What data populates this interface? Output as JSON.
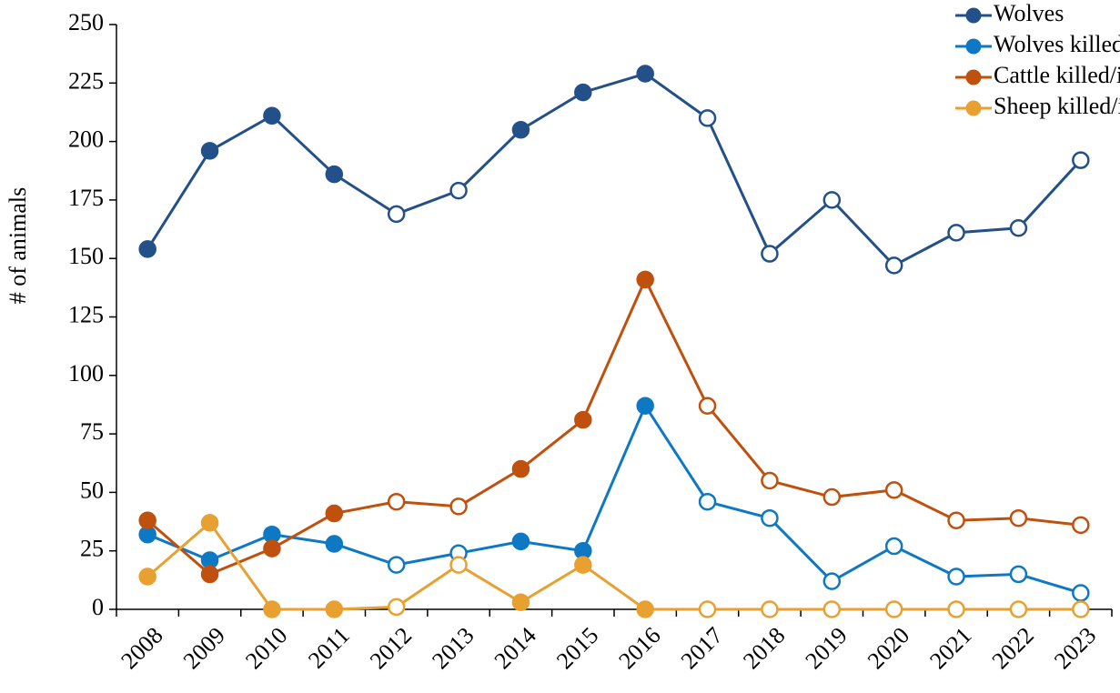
{
  "chart_data": {
    "type": "line",
    "y_label": "# of animals",
    "categories": [
      "2008",
      "2009",
      "2010",
      "2011",
      "2012",
      "2013",
      "2014",
      "2015",
      "2016",
      "2017",
      "2018",
      "2019",
      "2020",
      "2021",
      "2022",
      "2023"
    ],
    "series": [
      {
        "name": "Wolves",
        "color": "#24508a",
        "values": [
          154,
          196,
          211,
          186,
          169,
          179,
          205,
          221,
          229,
          210,
          152,
          175,
          147,
          161,
          163,
          192
        ],
        "marker_filled": [
          true,
          true,
          true,
          true,
          false,
          false,
          true,
          true,
          true,
          false,
          false,
          false,
          false,
          false,
          false,
          false
        ]
      },
      {
        "name": "Wolves killed",
        "color": "#0f78c4",
        "values": [
          32,
          21,
          32,
          28,
          19,
          24,
          29,
          25,
          87,
          46,
          39,
          12,
          27,
          14,
          15,
          7
        ],
        "marker_filled": [
          true,
          true,
          true,
          true,
          false,
          false,
          true,
          true,
          true,
          false,
          false,
          false,
          false,
          false,
          false,
          false
        ]
      },
      {
        "name": "Cattle killed/injured",
        "color": "#c0500e",
        "values": [
          38,
          15,
          26,
          41,
          46,
          44,
          60,
          81,
          141,
          87,
          55,
          48,
          51,
          38,
          39,
          36
        ],
        "marker_filled": [
          true,
          true,
          true,
          true,
          false,
          false,
          true,
          true,
          true,
          false,
          false,
          false,
          false,
          false,
          false,
          false
        ]
      },
      {
        "name": "Sheep killed/injured",
        "color": "#e8a030",
        "values": [
          14,
          37,
          0,
          0,
          1,
          19,
          3,
          19,
          0,
          0,
          0,
          0,
          0,
          0,
          0,
          0
        ],
        "marker_filled": [
          true,
          true,
          true,
          true,
          false,
          false,
          true,
          true,
          true,
          false,
          false,
          false,
          false,
          false,
          false,
          false
        ]
      }
    ],
    "ylim": [
      0,
      250
    ],
    "yticks": [
      0,
      25,
      50,
      75,
      100,
      125,
      150,
      175,
      200,
      225,
      250
    ],
    "grid": false,
    "legend_position": "top-right"
  }
}
